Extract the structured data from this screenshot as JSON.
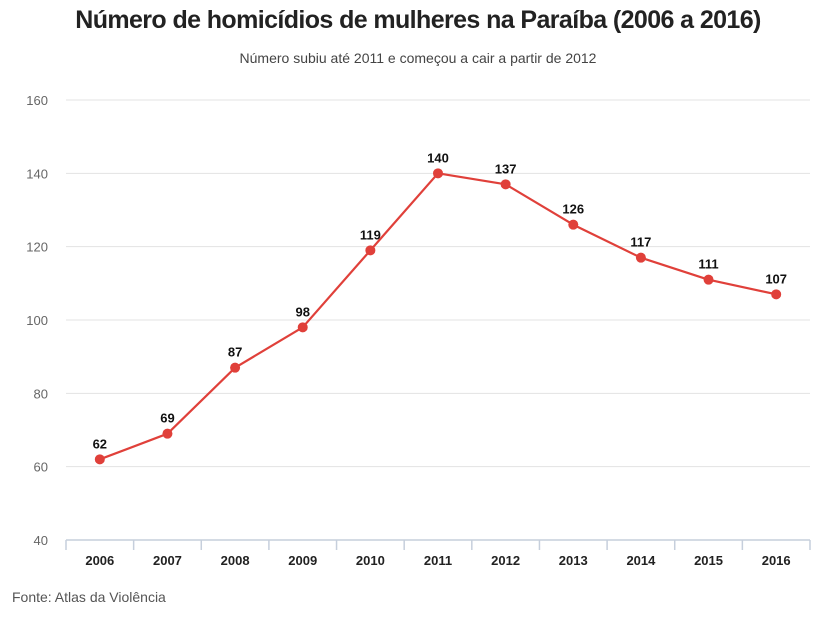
{
  "title": "Número de homicídios de mulheres na Paraíba (2006 a 2016)",
  "subtitle": "Número subiu até 2011 e começou a cair a partir de 2012",
  "source": "Fonte: Atlas da Violência",
  "chart_data": {
    "type": "line",
    "title": "Número de homicídios de mulheres na Paraíba (2006 a 2016)",
    "subtitle": "Número subiu até 2011 e começou a cair a partir de 2012",
    "xlabel": "",
    "ylabel": "",
    "categories": [
      "2006",
      "2007",
      "2008",
      "2009",
      "2010",
      "2011",
      "2012",
      "2013",
      "2014",
      "2015",
      "2016"
    ],
    "values": [
      62,
      69,
      87,
      98,
      119,
      140,
      137,
      126,
      117,
      111,
      107
    ],
    "ylim": [
      40,
      160
    ],
    "yticks": [
      40,
      60,
      80,
      100,
      120,
      140,
      160
    ],
    "grid": true,
    "legend": "none",
    "line_color": "#e0403a"
  }
}
